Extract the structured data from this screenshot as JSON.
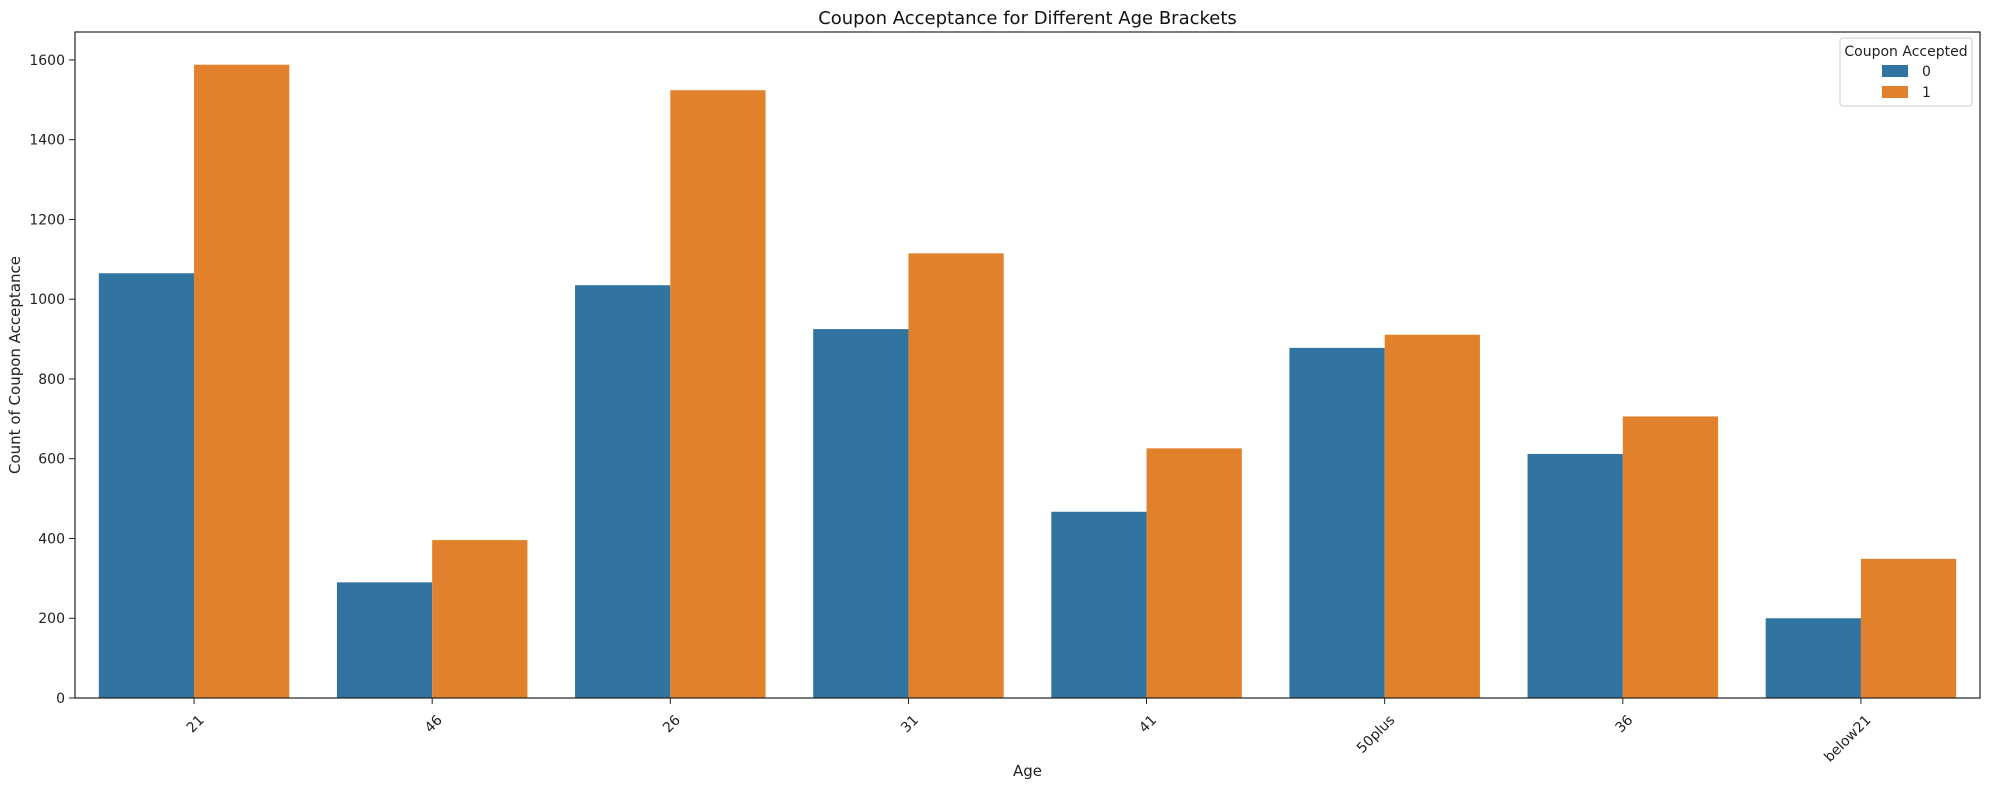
{
  "chart_data": {
    "type": "bar",
    "title": "Coupon Acceptance for Different Age Brackets",
    "xlabel": "Age",
    "ylabel": "Count of Coupon Acceptance",
    "categories": [
      "21",
      "46",
      "26",
      "31",
      "41",
      "50plus",
      "36",
      "below21"
    ],
    "series": [
      {
        "name": "0",
        "color": "#3274a1",
        "values": [
          1065,
          290,
          1035,
          925,
          467,
          878,
          612,
          200
        ]
      },
      {
        "name": "1",
        "color": "#e1812c",
        "values": [
          1588,
          396,
          1524,
          1115,
          626,
          911,
          706,
          349
        ]
      }
    ],
    "ylim": [
      0,
      1670
    ],
    "yticks": [
      0,
      200,
      400,
      600,
      800,
      1000,
      1200,
      1400,
      1600
    ],
    "legend": {
      "title": "Coupon Accepted",
      "placement": "top-right"
    },
    "grid": false,
    "xtick_rotation": 45
  }
}
